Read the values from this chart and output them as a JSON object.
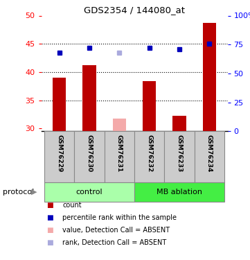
{
  "title": "GDS2354 / 144080_at",
  "samples": [
    "GSM76229",
    "GSM76230",
    "GSM76231",
    "GSM76232",
    "GSM76233",
    "GSM76234"
  ],
  "bar_values": [
    39.0,
    41.2,
    null,
    38.4,
    32.2,
    48.7
  ],
  "bar_absent_values": [
    null,
    null,
    31.8,
    null,
    null,
    null
  ],
  "rank_values": [
    43.4,
    44.3,
    null,
    44.3,
    44.1,
    45.0
  ],
  "rank_absent_values": [
    null,
    null,
    43.4,
    null,
    null,
    null
  ],
  "ylim_left": [
    29.5,
    50
  ],
  "ylim_right": [
    0,
    100
  ],
  "yticks_left": [
    30,
    35,
    40,
    45,
    50
  ],
  "yticks_right": [
    0,
    25,
    50,
    75,
    100
  ],
  "ytick_labels_right": [
    "0",
    "25",
    "50",
    "75",
    "100%"
  ],
  "bar_color": "#bb0000",
  "bar_absent_color": "#f4aaaa",
  "rank_color": "#0000bb",
  "rank_absent_color": "#aaaadd",
  "control_color": "#aaffaa",
  "mb_color": "#44ee44",
  "group_label_control": "control",
  "group_label_mb": "MB ablation",
  "protocol_label": "protocol",
  "legend_items": [
    [
      "#bb0000",
      "count"
    ],
    [
      "#0000bb",
      "percentile rank within the sample"
    ],
    [
      "#f4aaaa",
      "value, Detection Call = ABSENT"
    ],
    [
      "#aaaadd",
      "rank, Detection Call = ABSENT"
    ]
  ]
}
